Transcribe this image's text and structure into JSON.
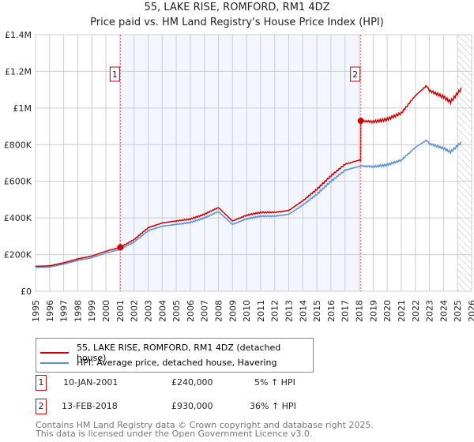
{
  "chart_data": {
    "type": "line",
    "title": "55, LAKE RISE, ROMFORD, RM1 4DZ",
    "subtitle": "Price paid vs. HM Land Registry's House Price Index (HPI)",
    "xlim": [
      1995,
      2026
    ],
    "ylim": [
      0,
      1400000
    ],
    "y_ticks": [
      {
        "v": 0,
        "label": "£0"
      },
      {
        "v": 200000,
        "label": "£200K"
      },
      {
        "v": 400000,
        "label": "£400K"
      },
      {
        "v": 600000,
        "label": "£600K"
      },
      {
        "v": 800000,
        "label": "£800K"
      },
      {
        "v": 1000000,
        "label": "£1M"
      },
      {
        "v": 1200000,
        "label": "£1.2M"
      },
      {
        "v": 1400000,
        "label": "£1.4M"
      }
    ],
    "x_ticks": [
      "1995",
      "1996",
      "1997",
      "1998",
      "1999",
      "2000",
      "2001",
      "2002",
      "2003",
      "2004",
      "2005",
      "2006",
      "2007",
      "2008",
      "2009",
      "2010",
      "2011",
      "2012",
      "2013",
      "2014",
      "2015",
      "2016",
      "2017",
      "2018",
      "2019",
      "2020",
      "2021",
      "2022",
      "2023",
      "2024",
      "2025",
      "2026"
    ],
    "hpi_x": [
      1995,
      1996,
      1997,
      1998,
      1999,
      2000,
      2001,
      2002,
      2003,
      2004,
      2005,
      2006,
      2007,
      2008,
      2009,
      2010,
      2011,
      2012,
      2013,
      2014,
      2015,
      2016,
      2017,
      2018.12,
      2019,
      2020,
      2021,
      2022,
      2022.8,
      2023,
      2024,
      2024.5,
      2025.3
    ],
    "hpi_y": [
      130000,
      132000,
      148000,
      168000,
      183000,
      208000,
      228000,
      268000,
      330000,
      355000,
      365000,
      375000,
      400000,
      435000,
      365000,
      395000,
      410000,
      410000,
      420000,
      470000,
      530000,
      600000,
      660000,
      684000,
      680000,
      690000,
      715000,
      785000,
      825000,
      805000,
      780000,
      760000,
      815000
    ],
    "series": [
      {
        "name": "55, LAKE RISE, ROMFORD, RM1 4DZ (detached house)",
        "color": "#cc0000"
      },
      {
        "name": "HPI: Average price, detached house, Havering",
        "color": "#5b8fd6"
      }
    ],
    "sales": [
      {
        "n": "1",
        "x": 2001.03,
        "y": 240000,
        "date": "10-JAN-2001",
        "price": "£240,000",
        "hpi": "5% ↑ HPI"
      },
      {
        "n": "2",
        "x": 2018.12,
        "y": 930000,
        "date": "13-FEB-2018",
        "price": "£930,000",
        "hpi": "36% ↑ HPI"
      }
    ],
    "forecast_start": 2025.0
  },
  "footer": {
    "line1": "Contains HM Land Registry data © Crown copyright and database right 2025.",
    "line2": "This data is licensed under the Open Government Licence v3.0."
  }
}
